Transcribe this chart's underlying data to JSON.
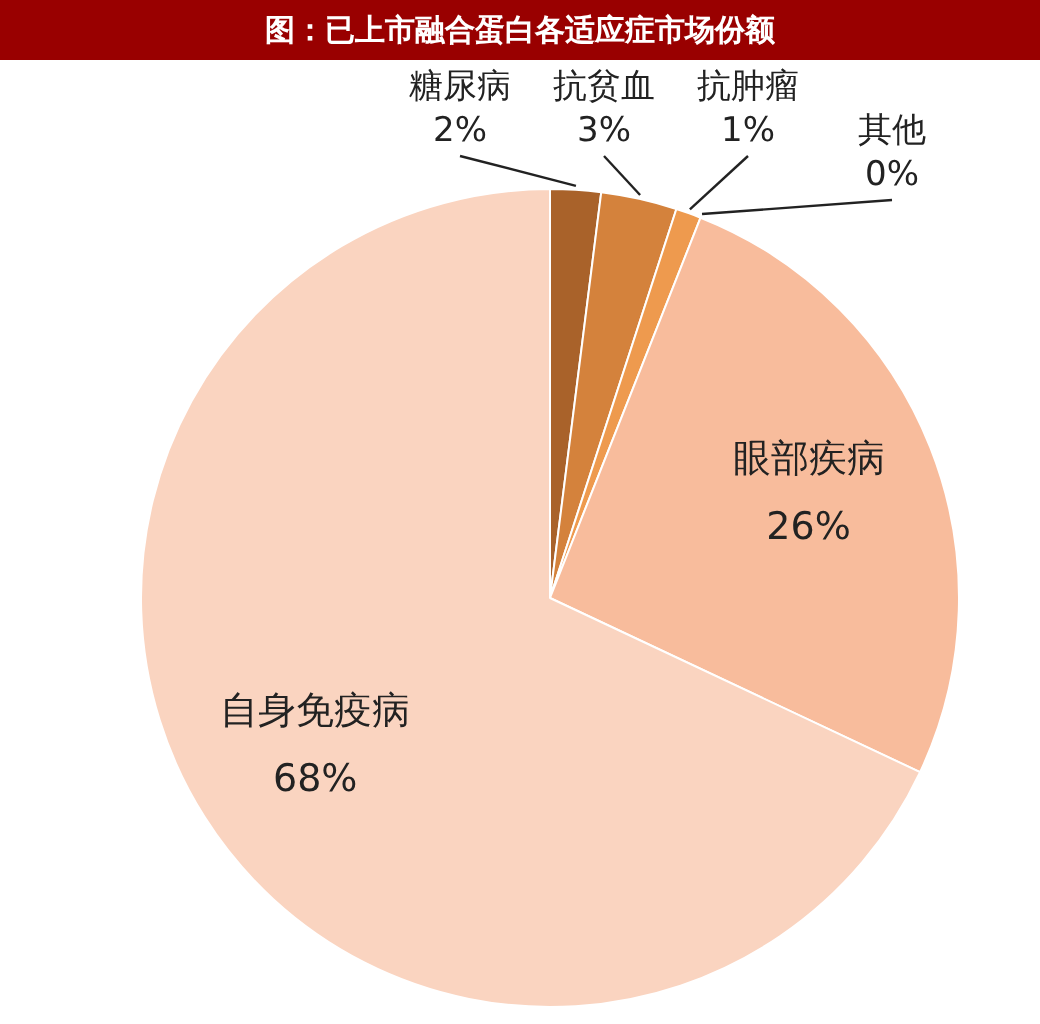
{
  "chart_data": {
    "type": "pie",
    "title": "图：已上市融合蛋白各适应症市场份额",
    "categories": [
      "糖尿病",
      "抗贫血",
      "抗肿瘤",
      "其他",
      "眼部疾病",
      "自身免疫病"
    ],
    "values": [
      2,
      3,
      1,
      0,
      26,
      68
    ],
    "value_labels": [
      "2%",
      "3%",
      "1%",
      "0%",
      "26%",
      "68%"
    ],
    "colors": [
      "#a9622a",
      "#d4823c",
      "#ee9a4e",
      "#f4a870",
      "#f8bc9c",
      "#fad4c0"
    ],
    "legend": false
  }
}
